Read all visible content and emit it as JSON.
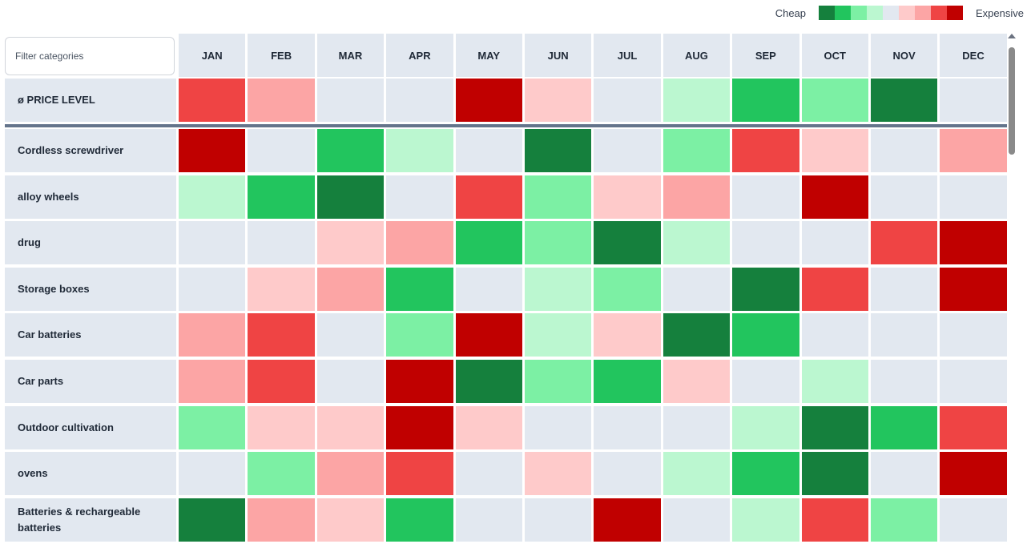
{
  "legend": {
    "cheap_label": "Cheap",
    "expensive_label": "Expensive",
    "scale": [
      "#15803d",
      "#22c55e",
      "#7cf0a4",
      "#bbf7d0",
      "#e2e8f0",
      "#fecaca",
      "#fca5a5",
      "#ef4444",
      "#c00000"
    ]
  },
  "filter": {
    "placeholder": "Filter categories",
    "value": ""
  },
  "months": [
    "JAN",
    "FEB",
    "MAR",
    "APR",
    "MAY",
    "JUN",
    "JUL",
    "AUG",
    "SEP",
    "OCT",
    "NOV",
    "DEC"
  ],
  "price_level": {
    "label": "ø PRICE LEVEL",
    "levels": [
      3,
      2,
      0,
      0,
      4,
      1,
      0,
      -1,
      -3,
      -2,
      -4,
      0
    ]
  },
  "categories": [
    {
      "label": "Cordless screwdriver",
      "levels": [
        4,
        0,
        -3,
        -1,
        0,
        -4,
        0,
        -2,
        3,
        1,
        0,
        2
      ]
    },
    {
      "label": "alloy wheels",
      "levels": [
        -1,
        -3,
        -4,
        0,
        3,
        -2,
        1,
        2,
        0,
        4,
        0,
        0
      ]
    },
    {
      "label": "drug",
      "levels": [
        0,
        0,
        1,
        2,
        -3,
        -2,
        -4,
        -1,
        0,
        0,
        3,
        4
      ]
    },
    {
      "label": "Storage boxes",
      "levels": [
        0,
        1,
        2,
        -3,
        0,
        -1,
        -2,
        0,
        -4,
        3,
        0,
        4
      ]
    },
    {
      "label": "Car batteries",
      "levels": [
        2,
        3,
        0,
        -2,
        4,
        -1,
        1,
        -4,
        -3,
        0,
        0,
        0
      ]
    },
    {
      "label": "Car parts",
      "levels": [
        2,
        3,
        0,
        4,
        -4,
        -2,
        -3,
        1,
        0,
        -1,
        0,
        0
      ]
    },
    {
      "label": "Outdoor cultivation",
      "levels": [
        -2,
        1,
        1,
        4,
        1,
        0,
        0,
        0,
        -1,
        -4,
        -3,
        3
      ]
    },
    {
      "label": "ovens",
      "levels": [
        0,
        -2,
        2,
        3,
        0,
        1,
        0,
        -1,
        -3,
        -4,
        0,
        4
      ]
    },
    {
      "label": "Batteries & rechargeable batteries",
      "levels": [
        -4,
        2,
        1,
        -3,
        0,
        0,
        4,
        0,
        -1,
        3,
        -2,
        0
      ]
    }
  ]
}
